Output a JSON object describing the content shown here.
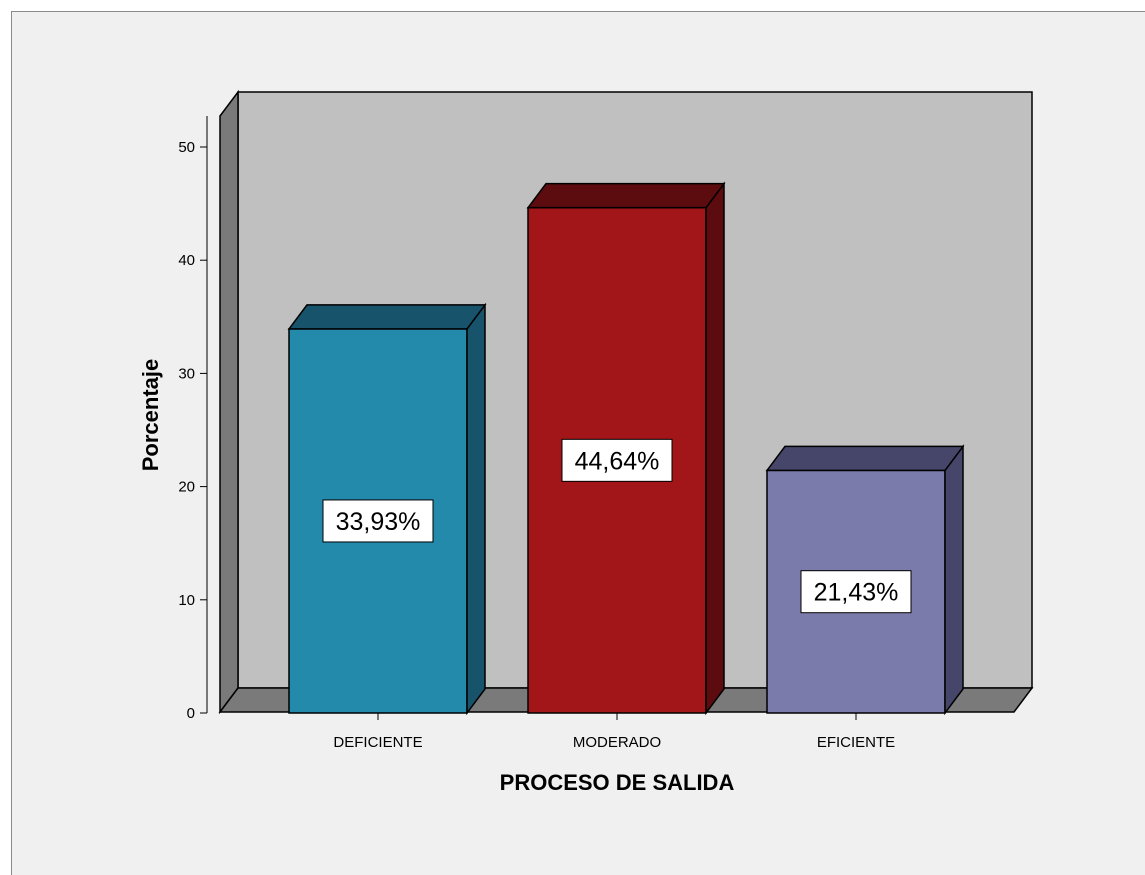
{
  "chart_data": {
    "type": "bar",
    "categories": [
      "DEFICIENTE",
      "MODERADO",
      "EFICIENTE"
    ],
    "values": [
      33.93,
      44.64,
      21.43
    ],
    "data_labels": [
      "33,93%",
      "44,64%",
      "21,43%"
    ],
    "xlabel": "PROCESO DE SALIDA",
    "ylabel": "Porcentaje",
    "ylim": [
      0,
      52
    ],
    "yticks": [
      0,
      10,
      20,
      30,
      40,
      50
    ],
    "grid": false,
    "three_d": true,
    "colors": [
      "#238aac",
      "#a2161a",
      "#7b7bab"
    ],
    "side_colors": [
      "#17536a",
      "#5c0c0e",
      "#46466a"
    ],
    "top_colors": [
      "#17536a",
      "#5c0c0e",
      "#46466a"
    ]
  }
}
